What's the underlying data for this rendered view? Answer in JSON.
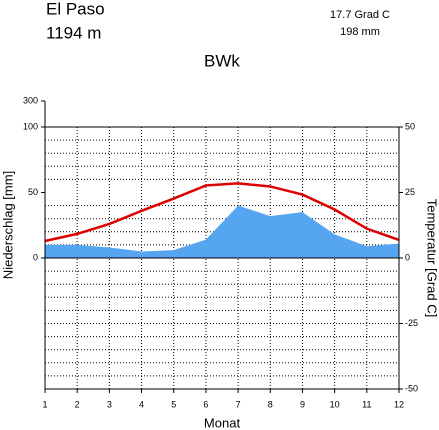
{
  "chart_data": {
    "type": "climate",
    "title": "BWk",
    "station": "El Paso",
    "elevation": "1194  m",
    "annotations": [
      "17.7 Grad C",
      "198 mm"
    ],
    "xlabel": "Monat",
    "ylabel": "Niederschlag [mm]",
    "y2label": "Temperatur [Grad C]",
    "x": [
      1,
      2,
      3,
      4,
      5,
      6,
      7,
      8,
      9,
      10,
      11,
      12
    ],
    "xlim": [
      1,
      12
    ],
    "xticks": [
      1,
      2,
      3,
      4,
      5,
      6,
      7,
      8,
      9,
      10,
      11,
      12
    ],
    "ylim": [
      -100,
      300
    ],
    "yticks": [
      0,
      50,
      100,
      300
    ],
    "yminorticks": [
      -100,
      -90,
      -80,
      -70,
      -60,
      -50,
      -40,
      -30,
      -20,
      -10,
      10,
      20,
      30,
      40,
      60,
      70,
      80,
      90
    ],
    "y2lim": [
      -50,
      50
    ],
    "y2ticks": [
      -50,
      -25,
      0,
      25,
      50
    ],
    "grid": true,
    "series": [
      {
        "name": "Niederschlag",
        "color": "#55a5f0",
        "values": [
          10,
          10,
          8,
          5,
          6,
          14,
          40,
          32,
          35,
          18,
          9,
          11
        ]
      },
      {
        "name": "Temperatur",
        "color": "#dd0000",
        "axis": "y2",
        "values": [
          6.5,
          9.2,
          13,
          18,
          22.7,
          27.7,
          28.5,
          27.3,
          24.2,
          18.5,
          11.2,
          6.9
        ]
      }
    ]
  }
}
